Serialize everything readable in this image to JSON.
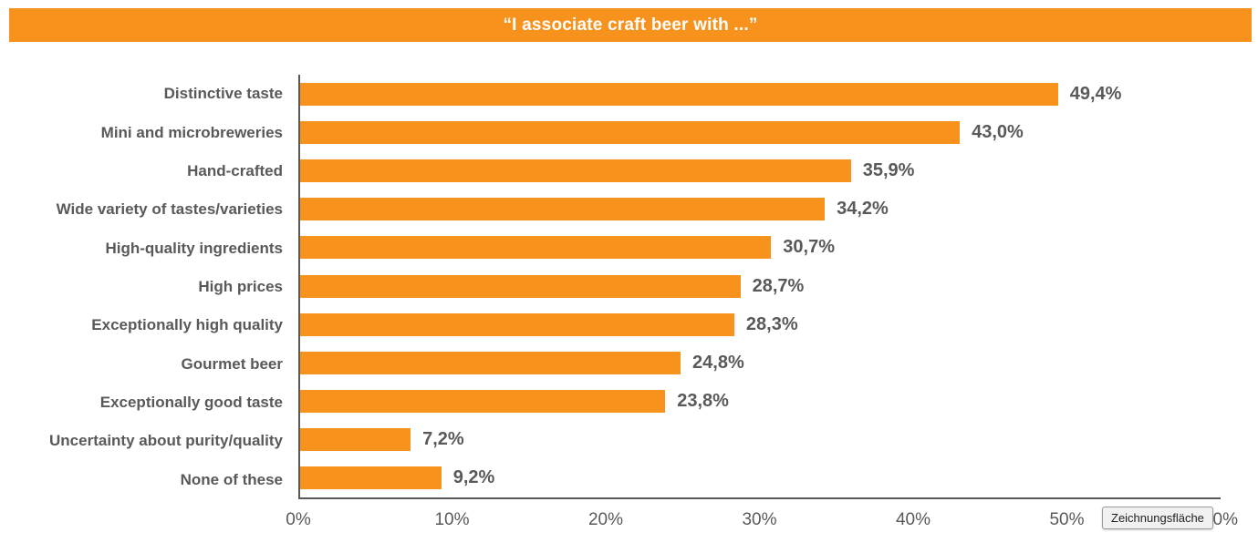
{
  "title": {
    "text": "“I associate craft beer with ...”",
    "background_color": "#F7921D",
    "text_color": "#FFFFFF"
  },
  "tooltip": {
    "text": "Zeichnungsfläche"
  },
  "chart_data": {
    "type": "bar",
    "orientation": "horizontal",
    "title": "“I associate craft beer with ...”",
    "categories": [
      "Distinctive taste",
      "Mini and microbreweries",
      "Hand-crafted",
      "Wide variety of tastes/varieties",
      "High-quality ingredients",
      "High prices",
      "Exceptionally high quality",
      "Gourmet beer",
      "Exceptionally good taste",
      "Uncertainty about purity/quality",
      "None of these"
    ],
    "values": [
      49.4,
      43.0,
      35.9,
      34.2,
      30.7,
      28.7,
      28.3,
      24.8,
      23.8,
      7.2,
      9.2
    ],
    "value_labels": [
      "49,4%",
      "43,0%",
      "35,9%",
      "34,2%",
      "30,7%",
      "28,7%",
      "28,3%",
      "24,8%",
      "23,8%",
      "7,2%",
      "9,2%"
    ],
    "xlabel": "",
    "ylabel": "",
    "xlim": [
      0,
      60
    ],
    "x_tick_labels": [
      "0%",
      "10%",
      "20%",
      "30%",
      "40%",
      "50%",
      "60%"
    ],
    "x_tick_values": [
      0,
      10,
      20,
      30,
      40,
      50,
      60
    ],
    "grid": false,
    "legend": null,
    "bar_color": "#F7921D",
    "axis_color": "#595959",
    "text_color": "#595959"
  }
}
